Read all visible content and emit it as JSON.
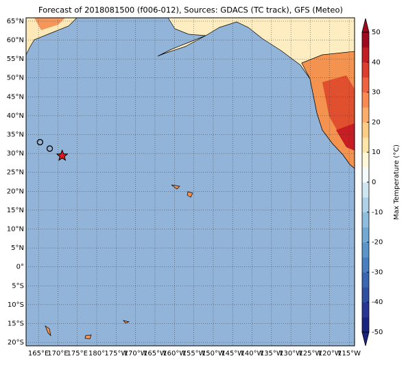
{
  "title": "Forecast of 2018081500 (f006-012), Sources: GDACS (TC track), GFS (Meteo)",
  "map": {
    "lonlim": [
      161.8,
      246.4
    ],
    "latlim": [
      -20.9,
      65.9
    ],
    "grid": true,
    "lat_ticks": [
      {
        "value": 65,
        "label": "65°N"
      },
      {
        "value": 60,
        "label": "60°N"
      },
      {
        "value": 55,
        "label": "55°N"
      },
      {
        "value": 50,
        "label": "50°N"
      },
      {
        "value": 45,
        "label": "45°N"
      },
      {
        "value": 40,
        "label": "40°N"
      },
      {
        "value": 35,
        "label": "35°N"
      },
      {
        "value": 30,
        "label": "30°N"
      },
      {
        "value": 25,
        "label": "25°N"
      },
      {
        "value": 20,
        "label": "20°N"
      },
      {
        "value": 15,
        "label": "15°N"
      },
      {
        "value": 10,
        "label": "10°N"
      },
      {
        "value": 5,
        "label": "5°N"
      },
      {
        "value": 0,
        "label": "0°"
      },
      {
        "value": -5,
        "label": "5°S"
      },
      {
        "value": -10,
        "label": "10°S"
      },
      {
        "value": -15,
        "label": "15°S"
      },
      {
        "value": -20,
        "label": "20°S"
      }
    ],
    "lon_ticks": [
      {
        "value": 165,
        "label": "165°E"
      },
      {
        "value": 170,
        "label": "170°E"
      },
      {
        "value": 175,
        "label": "175°E"
      },
      {
        "value": 180,
        "label": "180°"
      },
      {
        "value": 185,
        "label": "175°W"
      },
      {
        "value": 190,
        "label": "170°W"
      },
      {
        "value": 195,
        "label": "165°W"
      },
      {
        "value": 200,
        "label": "160°W"
      },
      {
        "value": 205,
        "label": "155°W"
      },
      {
        "value": 210,
        "label": "150°W"
      },
      {
        "value": 215,
        "label": "145°W"
      },
      {
        "value": 220,
        "label": "140°W"
      },
      {
        "value": 225,
        "label": "135°W"
      },
      {
        "value": 230,
        "label": "130°W"
      },
      {
        "value": 235,
        "label": "125°W"
      },
      {
        "value": 240,
        "label": "120°W"
      },
      {
        "value": 245,
        "label": "115°W"
      }
    ],
    "track": {
      "lon": [
        165.4,
        167.9,
        171.1
      ],
      "lat": [
        33.0,
        31.3,
        29.4
      ]
    }
  },
  "colorbar": {
    "label": "Max Temperature (°C)",
    "lim": [
      -50,
      50
    ],
    "ticks": [
      50,
      40,
      30,
      20,
      10,
      0,
      -10,
      -20,
      -30,
      -40,
      -50
    ],
    "colors": [
      "#1a237e",
      "#283593",
      "#2f4fa0",
      "#3a66b0",
      "#4a7fbf",
      "#5b95c9",
      "#73a9d3",
      "#8fbddd",
      "#aed1e7",
      "#d0e6f0",
      "#f5fbfb",
      "#fff7d8",
      "#fee6a8",
      "#fdcc85",
      "#fcad6a",
      "#f88b52",
      "#ee6340",
      "#dd3d2d",
      "#c21f24",
      "#9e0a1f"
    ]
  }
}
